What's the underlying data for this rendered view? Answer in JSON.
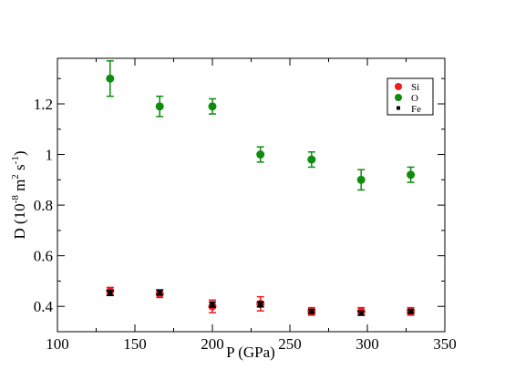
{
  "chart_data": {
    "type": "scatter",
    "xlabel": "P (GPa)",
    "ylabel": {
      "base": "D (10",
      "exp1": "-8",
      "mid1": " m",
      "exp2": "2",
      "mid2": " s",
      "exp3": "-1",
      "end": ")"
    },
    "xlim": [
      100,
      350
    ],
    "ylim": [
      0.3,
      1.38
    ],
    "xticks": [
      100,
      150,
      200,
      250,
      300,
      350
    ],
    "yticks": [
      0.4,
      0.6,
      0.8,
      1.0,
      1.2
    ],
    "ytick_labels": [
      "0.4",
      "0.6",
      "0.8",
      "1",
      "1.2"
    ],
    "grid": false,
    "legend_position": "top-right",
    "series": [
      {
        "name": "Si",
        "color": "#ee1c1c",
        "marker": "circle",
        "x": [
          134,
          166,
          200,
          231,
          264,
          296,
          328
        ],
        "y": [
          0.46,
          0.45,
          0.4,
          0.41,
          0.38,
          0.38,
          0.38
        ],
        "err": [
          0.015,
          0.015,
          0.025,
          0.028,
          0.015,
          0.015,
          0.015
        ]
      },
      {
        "name": "O",
        "color": "#0e8c0e",
        "marker": "circle",
        "x": [
          134,
          166,
          200,
          231,
          264,
          296,
          328
        ],
        "y": [
          1.3,
          1.19,
          1.19,
          1.0,
          0.98,
          0.9,
          0.92
        ],
        "err": [
          0.07,
          0.04,
          0.03,
          0.03,
          0.03,
          0.04,
          0.03
        ]
      },
      {
        "name": "Fe",
        "color": "#000000",
        "marker": "square",
        "x": [
          134,
          166,
          200,
          231,
          264,
          296,
          328
        ],
        "y": [
          0.453,
          0.455,
          0.407,
          0.408,
          0.38,
          0.373,
          0.38
        ],
        "err": [
          0.01,
          0.01,
          0.01,
          0.01,
          0.008,
          0.008,
          0.008
        ]
      }
    ]
  }
}
